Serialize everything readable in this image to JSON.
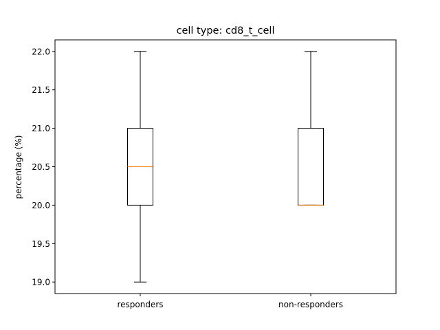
{
  "chart_data": {
    "type": "box",
    "title": "cell type: cd8_t_cell",
    "xlabel": "",
    "ylabel": "percentage (%)",
    "categories": [
      "responders",
      "non-responders"
    ],
    "boxes": [
      {
        "category": "responders",
        "whisker_low": 19.0,
        "q1": 20.0,
        "median": 20.5,
        "q3": 21.0,
        "whisker_high": 22.0
      },
      {
        "category": "non-responders",
        "whisker_low": 20.0,
        "q1": 20.0,
        "median": 20.0,
        "q3": 21.0,
        "whisker_high": 22.0
      }
    ],
    "ylim": [
      18.85,
      22.15
    ],
    "yticks": [
      19.0,
      19.5,
      20.0,
      20.5,
      21.0,
      21.5,
      22.0
    ],
    "ytick_labels": [
      "19.0",
      "19.5",
      "20.0",
      "20.5",
      "21.0",
      "21.5",
      "22.0"
    ],
    "grid": false,
    "colors": {
      "box": "#000000",
      "median": "#ff7f0e",
      "whisker": "#000000"
    }
  }
}
